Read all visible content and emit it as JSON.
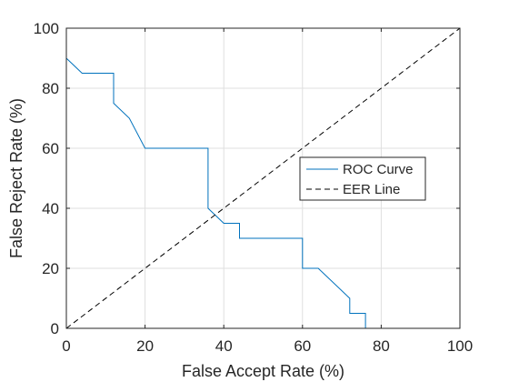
{
  "chart_data": {
    "type": "line",
    "title": "",
    "xlabel": "False Accept Rate (%)",
    "ylabel": "False Reject Rate (%)",
    "xlim": [
      0,
      100
    ],
    "ylim": [
      0,
      100
    ],
    "xticks": [
      "0",
      "20",
      "40",
      "60",
      "80",
      "100"
    ],
    "yticks": [
      "0",
      "20",
      "40",
      "60",
      "80",
      "100"
    ],
    "grid": true,
    "legend_position": "right",
    "series": [
      {
        "name": "ROC Curve",
        "style": "solid",
        "color": "#0072BD",
        "x": [
          0,
          0,
          0,
          4,
          12,
          12,
          16,
          20,
          36,
          36,
          40,
          44,
          44,
          60,
          60,
          64,
          72,
          72,
          76,
          76,
          100
        ],
        "y": [
          100,
          95,
          90,
          85,
          85,
          75,
          70,
          60,
          60,
          40,
          35,
          35,
          30,
          30,
          20,
          20,
          10,
          5,
          5,
          0,
          0
        ]
      },
      {
        "name": "EER Line",
        "style": "dashed",
        "color": "#000000",
        "x": [
          0,
          100
        ],
        "y": [
          0,
          100
        ]
      }
    ]
  }
}
